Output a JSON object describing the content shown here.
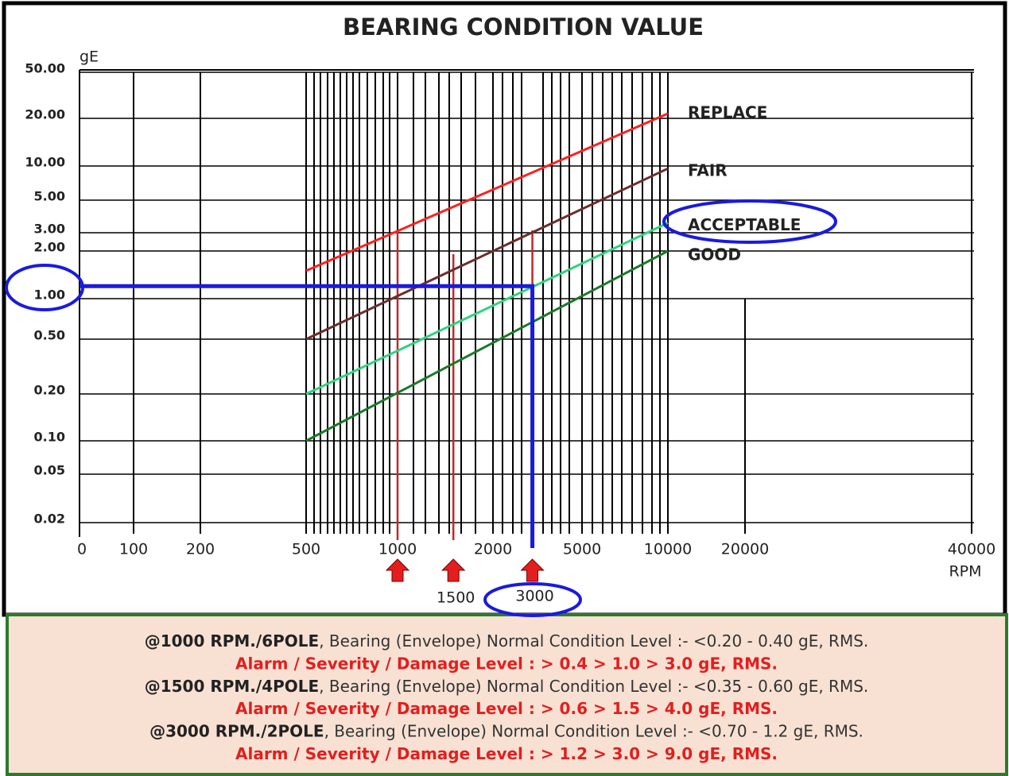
{
  "chart_data": {
    "type": "line",
    "title": "BEARING CONDITION VALUE",
    "y_label": "gE",
    "x_label": "RPM",
    "xticks": [
      0,
      100,
      200,
      500,
      1000,
      2000,
      5000,
      10000,
      20000,
      40000
    ],
    "yticks": [
      {
        "value": 50,
        "label": "50.00"
      },
      {
        "value": 20,
        "label": "20.00"
      },
      {
        "value": 10,
        "label": "10.00"
      },
      {
        "value": 5,
        "label": "5.00"
      },
      {
        "value": 3,
        "label": "3.00"
      },
      {
        "value": 2,
        "label": "2.00"
      },
      {
        "value": 1,
        "label": "1.00"
      },
      {
        "value": 0.5,
        "label": "0.50"
      },
      {
        "value": 0.2,
        "label": "0.20"
      },
      {
        "value": 0.1,
        "label": "0.10"
      },
      {
        "value": 0.05,
        "label": "0.05"
      },
      {
        "value": 0.02,
        "label": "0.02"
      }
    ],
    "grid": true,
    "x": [
      500,
      10000
    ],
    "series": [
      {
        "name": "REPLACE",
        "color": "#ff2020",
        "values": [
          1.5,
          22
        ]
      },
      {
        "name": "FAIR",
        "color": "#6b2e2e",
        "values": [
          0.5,
          9.5
        ]
      },
      {
        "name": "ACCEPTABLE",
        "color": "#2ed47f",
        "values": [
          0.2,
          3.5
        ]
      },
      {
        "name": "GOOD",
        "color": "#1a7a2a",
        "values": [
          0.1,
          2
        ]
      }
    ],
    "markers": [
      1000,
      1500,
      3000
    ],
    "highlight": {
      "x": 3000,
      "y": 1.2
    },
    "notes": [
      {
        "bold": "@1000 RPM./6POLE",
        "text": ", Bearing (Envelope) Normal Condition Level :- <0.20 - 0.40 gE, RMS."
      },
      {
        "alarm": "Alarm / Severity / Damage Level : > 0.4 > 1.0 > 3.0 gE, RMS."
      },
      {
        "bold": "@1500 RPM./4POLE",
        "text": ", Bearing (Envelope) Normal Condition Level :- <0.35 - 0.60 gE, RMS."
      },
      {
        "alarm": "Alarm / Severity / Damage Level : > 0.6 > 1.5 > 4.0 gE, RMS."
      },
      {
        "bold": "@3000 RPM./2POLE",
        "text": ", Bearing (Envelope) Normal Condition Level :- <0.70 - 1.2 gE, RMS."
      },
      {
        "alarm": "Alarm / Severity / Damage Level : > 1.2 > 3.0 > 9.0 gE, RMS."
      }
    ]
  }
}
